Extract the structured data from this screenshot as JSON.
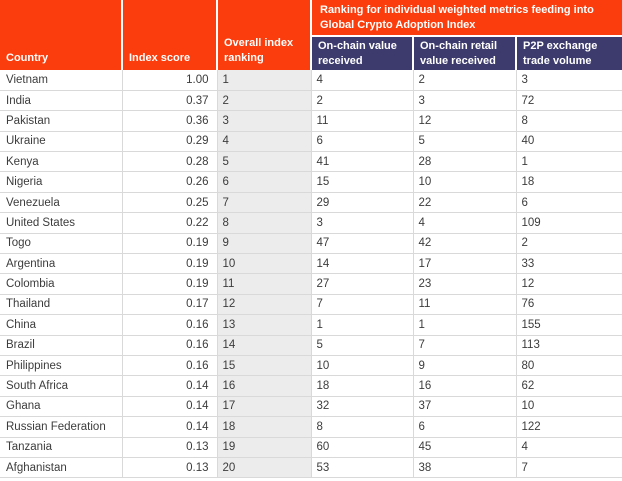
{
  "chart_data": {
    "type": "table",
    "group_header": "Ranking for individual weighted metrics feeding into Global Crypto Adoption Index",
    "columns": {
      "country": "Country",
      "index_score": "Index score",
      "overall_index_ranking": "Overall index ranking",
      "onchain_value_received": "On-chain value received",
      "onchain_retail_value_received": "On-chain retail value received",
      "p2p_exchange_trade_volume": "P2P exchange trade volume"
    },
    "rows": [
      {
        "country": "Vietnam",
        "index_score": "1.00",
        "overall_index_ranking": "1",
        "onchain_value_received": "4",
        "onchain_retail_value_received": "2",
        "p2p_exchange_trade_volume": "3"
      },
      {
        "country": "India",
        "index_score": "0.37",
        "overall_index_ranking": "2",
        "onchain_value_received": "2",
        "onchain_retail_value_received": "3",
        "p2p_exchange_trade_volume": "72"
      },
      {
        "country": "Pakistan",
        "index_score": "0.36",
        "overall_index_ranking": "3",
        "onchain_value_received": "11",
        "onchain_retail_value_received": "12",
        "p2p_exchange_trade_volume": "8"
      },
      {
        "country": "Ukraine",
        "index_score": "0.29",
        "overall_index_ranking": "4",
        "onchain_value_received": "6",
        "onchain_retail_value_received": "5",
        "p2p_exchange_trade_volume": "40"
      },
      {
        "country": "Kenya",
        "index_score": "0.28",
        "overall_index_ranking": "5",
        "onchain_value_received": "41",
        "onchain_retail_value_received": "28",
        "p2p_exchange_trade_volume": "1"
      },
      {
        "country": "Nigeria",
        "index_score": "0.26",
        "overall_index_ranking": "6",
        "onchain_value_received": "15",
        "onchain_retail_value_received": "10",
        "p2p_exchange_trade_volume": "18"
      },
      {
        "country": "Venezuela",
        "index_score": "0.25",
        "overall_index_ranking": "7",
        "onchain_value_received": "29",
        "onchain_retail_value_received": "22",
        "p2p_exchange_trade_volume": "6"
      },
      {
        "country": "United States",
        "index_score": "0.22",
        "overall_index_ranking": "8",
        "onchain_value_received": "3",
        "onchain_retail_value_received": "4",
        "p2p_exchange_trade_volume": "109"
      },
      {
        "country": "Togo",
        "index_score": "0.19",
        "overall_index_ranking": "9",
        "onchain_value_received": "47",
        "onchain_retail_value_received": "42",
        "p2p_exchange_trade_volume": "2"
      },
      {
        "country": "Argentina",
        "index_score": "0.19",
        "overall_index_ranking": "10",
        "onchain_value_received": "14",
        "onchain_retail_value_received": "17",
        "p2p_exchange_trade_volume": "33"
      },
      {
        "country": "Colombia",
        "index_score": "0.19",
        "overall_index_ranking": "11",
        "onchain_value_received": "27",
        "onchain_retail_value_received": "23",
        "p2p_exchange_trade_volume": "12"
      },
      {
        "country": "Thailand",
        "index_score": "0.17",
        "overall_index_ranking": "12",
        "onchain_value_received": "7",
        "onchain_retail_value_received": "11",
        "p2p_exchange_trade_volume": "76"
      },
      {
        "country": "China",
        "index_score": "0.16",
        "overall_index_ranking": "13",
        "onchain_value_received": "1",
        "onchain_retail_value_received": "1",
        "p2p_exchange_trade_volume": "155"
      },
      {
        "country": "Brazil",
        "index_score": "0.16",
        "overall_index_ranking": "14",
        "onchain_value_received": "5",
        "onchain_retail_value_received": "7",
        "p2p_exchange_trade_volume": "113"
      },
      {
        "country": "Philippines",
        "index_score": "0.16",
        "overall_index_ranking": "15",
        "onchain_value_received": "10",
        "onchain_retail_value_received": "9",
        "p2p_exchange_trade_volume": "80"
      },
      {
        "country": "South Africa",
        "index_score": "0.14",
        "overall_index_ranking": "16",
        "onchain_value_received": "18",
        "onchain_retail_value_received": "16",
        "p2p_exchange_trade_volume": "62"
      },
      {
        "country": "Ghana",
        "index_score": "0.14",
        "overall_index_ranking": "17",
        "onchain_value_received": "32",
        "onchain_retail_value_received": "37",
        "p2p_exchange_trade_volume": "10"
      },
      {
        "country": "Russian Federation",
        "index_score": "0.14",
        "overall_index_ranking": "18",
        "onchain_value_received": "8",
        "onchain_retail_value_received": "6",
        "p2p_exchange_trade_volume": "122"
      },
      {
        "country": "Tanzania",
        "index_score": "0.13",
        "overall_index_ranking": "19",
        "onchain_value_received": "60",
        "onchain_retail_value_received": "45",
        "p2p_exchange_trade_volume": "4"
      },
      {
        "country": "Afghanistan",
        "index_score": "0.13",
        "overall_index_ranking": "20",
        "onchain_value_received": "53",
        "onchain_retail_value_received": "38",
        "p2p_exchange_trade_volume": "7"
      }
    ]
  },
  "colors": {
    "header_orange": "#fb3c0c",
    "header_navy": "#3d3b6e",
    "ranking_column_bg": "#ececec",
    "grid_line": "#d9d9d9",
    "body_text": "#3c3c3c",
    "header_text": "#ffffff"
  }
}
